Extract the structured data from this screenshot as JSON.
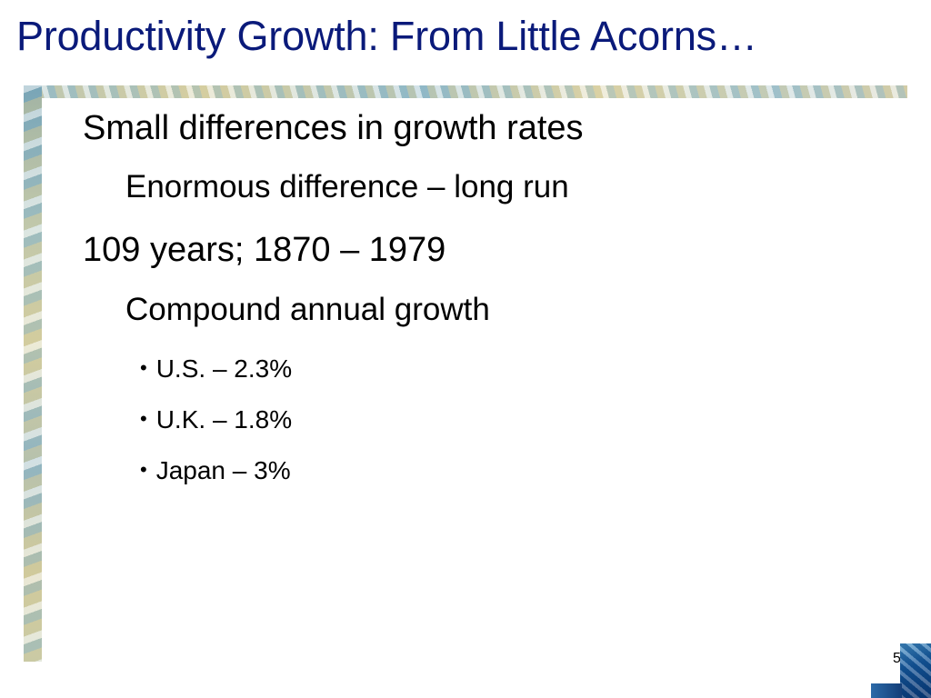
{
  "slide": {
    "title": "Productivity Growth: From Little Acorns…",
    "page_number": "5",
    "lines": [
      {
        "text": "Small differences in growth rates",
        "level": 1
      },
      {
        "text": "Enormous difference – long run",
        "level": 2
      },
      {
        "text": "109 years; 1870 – 1979",
        "level": 1
      },
      {
        "text": "Compound annual growth",
        "level": 2
      },
      {
        "text": "U.S. – 2.3%",
        "level": 3
      },
      {
        "text": "U.K. – 1.8%",
        "level": 3
      },
      {
        "text": "Japan – 3%",
        "level": 3
      }
    ],
    "bullet_symbol": "•",
    "colors": {
      "title": "#0a1a7a",
      "body": "#000000",
      "accent": "#1c5a9c"
    }
  }
}
